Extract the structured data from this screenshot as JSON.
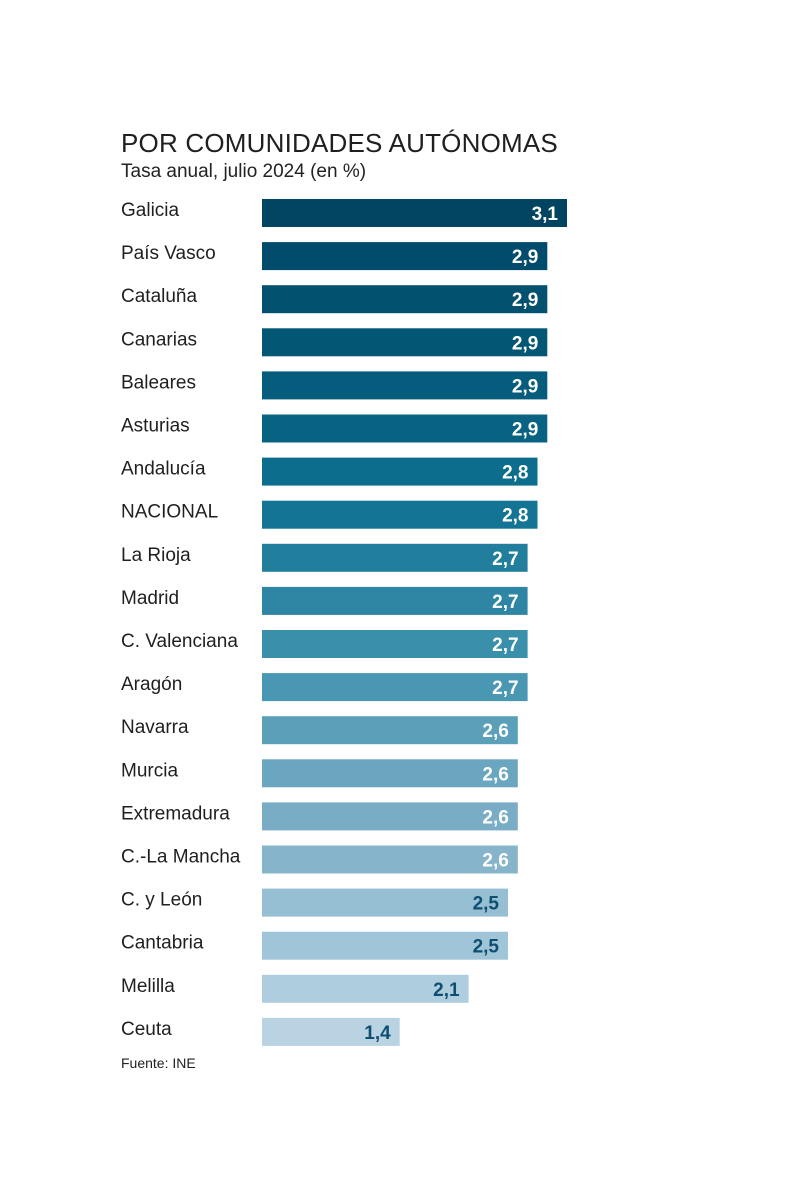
{
  "chart_data": {
    "type": "bar",
    "orientation": "horizontal",
    "title": "POR COMUNIDADES AUTÓNOMAS",
    "subtitle": "Tasa anual, julio 2024 (en %)",
    "source": "Fuente: INE",
    "xlim": [
      0,
      3.1
    ],
    "grid": false,
    "categories": [
      "Galicia",
      "País Vasco",
      "Cataluña",
      "Canarias",
      "Baleares",
      "Asturias",
      "Andalucía",
      "NACIONAL",
      "La Rioja",
      "Madrid",
      "C. Valenciana",
      "Aragón",
      "Navarra",
      "Murcia",
      "Extremadura",
      "C.-La Mancha",
      "C. y León",
      "Cantabria",
      "Melilla",
      "Ceuta"
    ],
    "values": [
      3.1,
      2.9,
      2.9,
      2.9,
      2.9,
      2.9,
      2.8,
      2.8,
      2.7,
      2.7,
      2.7,
      2.7,
      2.6,
      2.6,
      2.6,
      2.6,
      2.5,
      2.5,
      2.1,
      1.4
    ],
    "value_labels": [
      "3,1",
      "2,9",
      "2,9",
      "2,9",
      "2,9",
      "2,9",
      "2,8",
      "2,8",
      "2,7",
      "2,7",
      "2,7",
      "2,7",
      "2,6",
      "2,6",
      "2,6",
      "2,6",
      "2,5",
      "2,5",
      "2,1",
      "1,4"
    ],
    "bar_colors": [
      "#014462",
      "#014c6c",
      "#02526f",
      "#035775",
      "#065c7c",
      "#086382",
      "#0d6d8c",
      "#137495",
      "#217e9c",
      "#2e86a4",
      "#3a8fab",
      "#4997b3",
      "#5c9fb8",
      "#6aa6bf",
      "#79adc5",
      "#86b4ca",
      "#97bfd3",
      "#a1c5d8",
      "#aecedf",
      "#b9d3e3"
    ],
    "label_colors": [
      "#ffffff",
      "#ffffff",
      "#ffffff",
      "#ffffff",
      "#ffffff",
      "#ffffff",
      "#ffffff",
      "#ffffff",
      "#ffffff",
      "#ffffff",
      "#ffffff",
      "#ffffff",
      "#ffffff",
      "#ffffff",
      "#ffffff",
      "#ffffff",
      "#0f4e6f",
      "#0f4e6f",
      "#0f4e6f",
      "#0f4e6f"
    ]
  }
}
